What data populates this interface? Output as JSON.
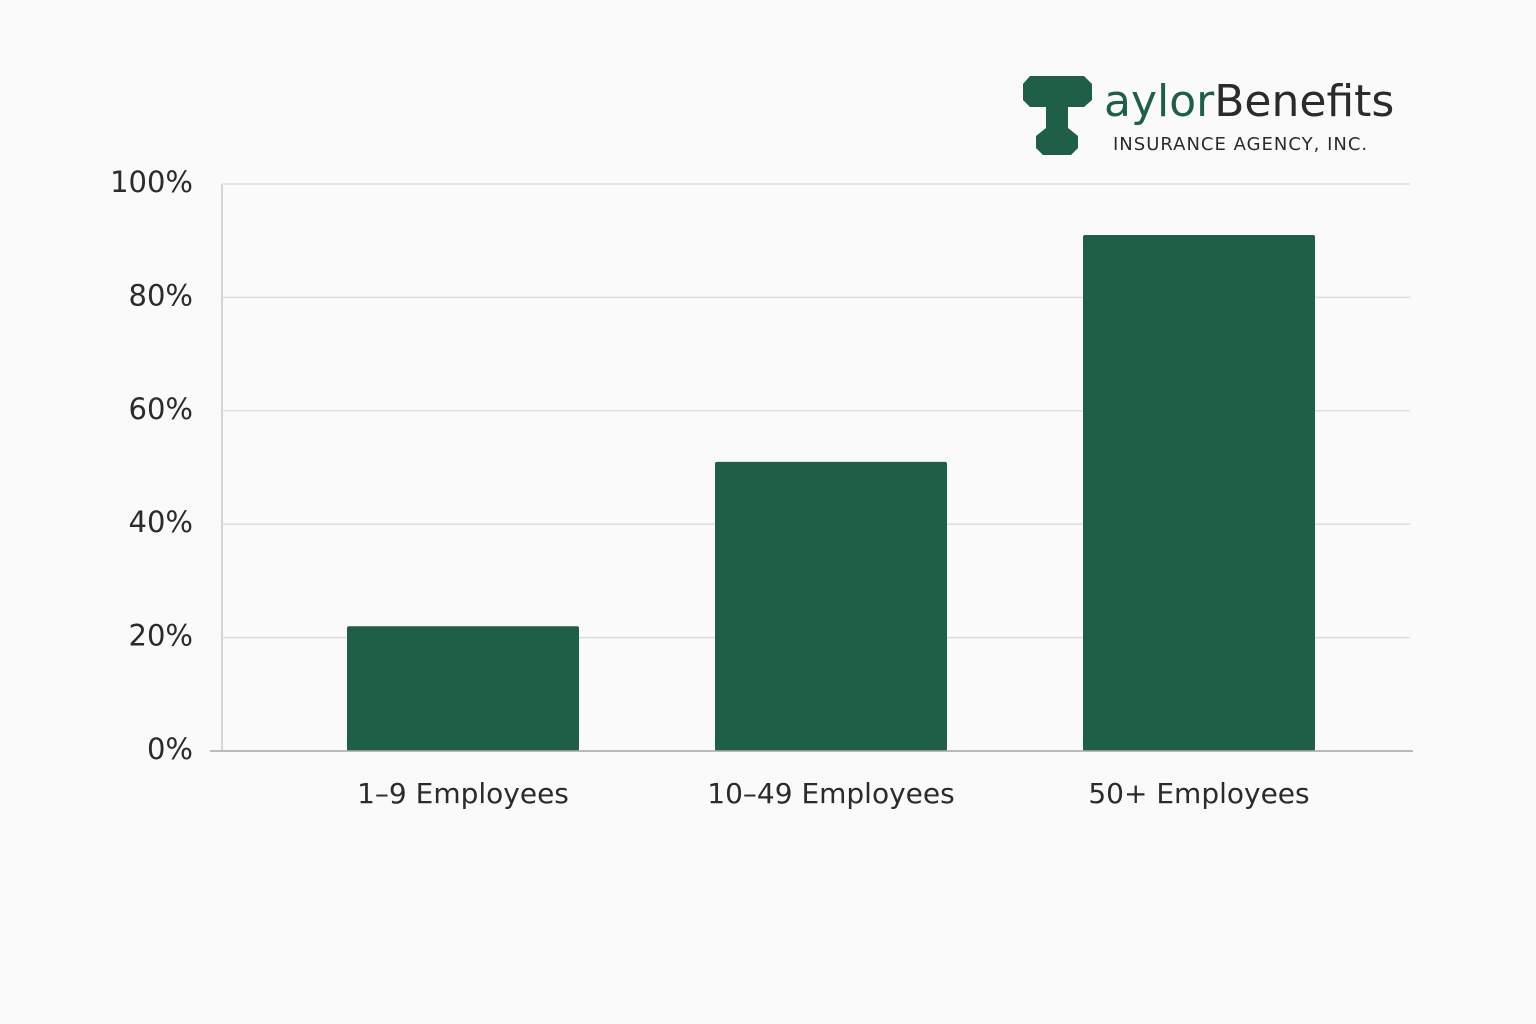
{
  "logo": {
    "brand_accent": "aylor",
    "brand_rest": "Benefits",
    "tagline": "INSURANCE AGENCY, INC."
  },
  "chart_data": {
    "type": "bar",
    "categories": [
      "1–9 Employees",
      "10–49 Employees",
      "50+ Employees"
    ],
    "values": [
      22,
      51,
      91
    ],
    "color": "#1f5f47",
    "ylim": [
      0,
      100
    ],
    "yticks": [
      {
        "value": 0,
        "label": "0%"
      },
      {
        "value": 20,
        "label": "20%"
      },
      {
        "value": 40,
        "label": "40%"
      },
      {
        "value": 60,
        "label": "60%"
      },
      {
        "value": 80,
        "label": "80%"
      },
      {
        "value": 100,
        "label": "100%"
      }
    ],
    "grid": true
  }
}
